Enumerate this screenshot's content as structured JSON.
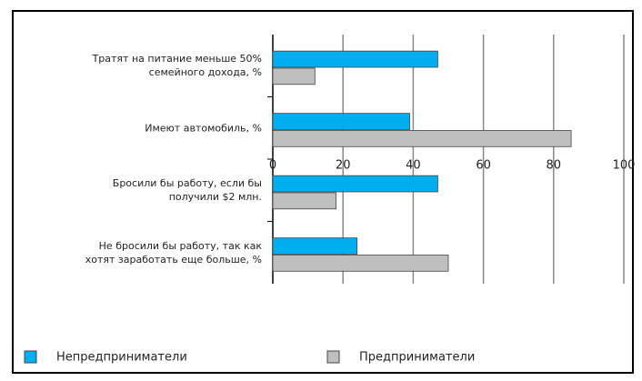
{
  "chart_data": {
    "type": "bar",
    "orientation": "horizontal",
    "categories": [
      "Тратят на питание меньше 50%\nсемейного дохода, %",
      "Имеют автомобиль, %",
      "Бросили бы работу, если бы\nполучили $2 млн.",
      "Не бросили бы работу, так как\nхотят заработать еще больше, %"
    ],
    "series": [
      {
        "name": "Непредприниматели",
        "color": "#00aeef",
        "values": [
          47,
          39,
          47,
          24
        ]
      },
      {
        "name": "Предприниматели",
        "color": "#bfbfbf",
        "values": [
          12,
          85,
          18,
          50
        ]
      }
    ],
    "xlim": [
      0,
      100
    ],
    "xticks": [
      0,
      20,
      40,
      60,
      80,
      100
    ],
    "grid": true,
    "legend": "bottom"
  }
}
